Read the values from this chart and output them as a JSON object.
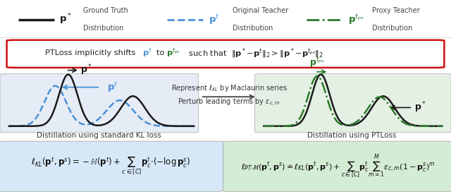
{
  "bg_color": "#ffffff",
  "legend_items": [
    {
      "linestyle": "-",
      "color": "#1a1a1a",
      "linewidth": 2.5,
      "label": "$\\mathbf{p}^*$",
      "desc1": "Ground Truth",
      "desc2": "Distribution",
      "label_color": "#1a1a1a"
    },
    {
      "linestyle": "--",
      "color": "#4a90d9",
      "linewidth": 2.0,
      "label": "$\\mathbf{p}^t$",
      "desc1": "Original Teacher",
      "desc2": "Distribution",
      "label_color": "#4a90d9"
    },
    {
      "linestyle": "-.",
      "color": "#2a7a2a",
      "linewidth": 2.0,
      "label": "$\\mathbf{p}^{t_{px}}$",
      "desc1": "Proxy Teacher",
      "desc2": "Distribution",
      "label_color": "#2a7a2a"
    }
  ],
  "red_box_pre": "PTLoss implicitly shifts ",
  "red_box_pt": "$\\mathbf{p}^t$",
  "red_box_mid": " to ",
  "red_box_ptpx": "$\\mathbf{p}^{t_{px}}$",
  "red_box_post": " such that  $\\|\\mathbf{p}^*\\!-\\!\\mathbf{p}^t\\|_2 > \\|\\mathbf{p}^*\\!-\\!\\mathbf{p}^{t_{px}}\\|_2$",
  "arrow_text_top": "Represent $\\ell_{KL}$ by Maclaurin series",
  "arrow_text_bot": "Perturb leading terms by $\\epsilon_{c,m}$",
  "left_title": "Distillation using standard KL loss",
  "right_title": "Distillation using PTLoss",
  "formula_left_bg": "#d6e8f7",
  "formula_right_bg": "#d4ecd4",
  "formula_left": "$\\ell_{KL}(\\mathbf{p}^t,\\mathbf{p}^s) = -\\mathbb{H}(\\mathbf{p}^t) + \\displaystyle\\sum_{c\\in[C]}\\mathbf{p}_c^t{\\cdot}(-\\log\\mathbf{p}_c^s)$",
  "formula_right": "$\\ell_{PT\\text{-}M}(\\mathbf{p}^t,\\mathbf{p}^s) \\doteq \\ell_{KL}(\\mathbf{p}^t,\\mathbf{p}^s) + \\displaystyle\\sum_{c\\in[C]}\\mathbf{p}_c^t\\sum_{m=1}^{M}\\epsilon_{c,m}(1-\\mathbf{p}_c^s)^m$",
  "black_color": "#1a1a1a",
  "blue_color": "#4a90d9",
  "green_color": "#2a7a2a"
}
